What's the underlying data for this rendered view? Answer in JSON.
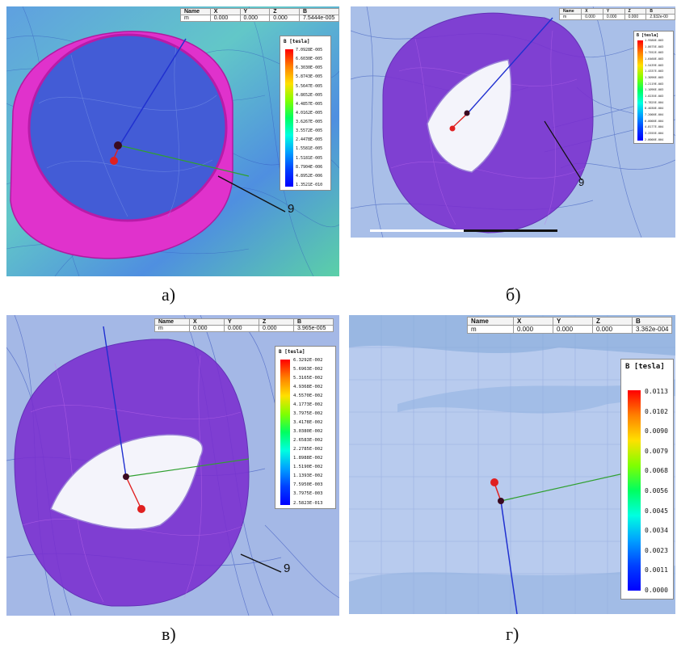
{
  "panels": [
    {
      "caption": "а)",
      "pointer_label": "9",
      "table": {
        "headers": [
          "Name",
          "X",
          "Y",
          "Z",
          "B"
        ],
        "row": [
          "m",
          "0.000",
          "0.000",
          "0.000",
          "7.5444e-005"
        ]
      },
      "legend": {
        "title": "B [tesla]",
        "ticks": [
          "7.0928E-005",
          "6.6030E-005",
          "6.3030E-005",
          "5.8743E-005",
          "5.5647E-005",
          "4.8652E-005",
          "4.4857E-005",
          "4.0162E-005",
          "3.6267E-005",
          "3.5572E-005",
          "2.4478E-005",
          "1.5581E-005",
          "1.5181E-005",
          "8.7904E-006",
          "4.8952E-006",
          "1.3521E-010"
        ]
      }
    },
    {
      "caption": "б)",
      "pointer_label": "9",
      "table": {
        "headers": [
          "Name",
          "X",
          "Y",
          "Z",
          "B"
        ],
        "row": [
          "m",
          "0.000",
          "0.000",
          "0.000",
          "2.932e-00"
        ]
      },
      "legend": {
        "title": "B [tesla]",
        "ticks": [
          "1.9580E-003",
          "1.8675E-003",
          "1.7552E-003",
          "1.6460E-003",
          "1.5439E-003",
          "1.4337E-003",
          "1.3096E-003",
          "1.2119E-003",
          "1.1096E-003",
          "1.0235E-003",
          "9.7825E-004",
          "8.4030E-004",
          "7.2000E-004",
          "6.0000E-004",
          "4.8177E-004",
          "3.2555E-004",
          "2.0000E-004"
        ]
      }
    },
    {
      "caption": "в)",
      "pointer_label": "9",
      "table": {
        "headers": [
          "Name",
          "X",
          "Y",
          "Z",
          "B"
        ],
        "row": [
          "m",
          "0.000",
          "0.000",
          "0.000",
          "3.965e-005"
        ]
      },
      "legend": {
        "title": "B [tesla]",
        "ticks": [
          "6.3292E-002",
          "5.6963E-002",
          "5.3165E-002",
          "4.9368E-002",
          "4.5570E-002",
          "4.1773E-002",
          "3.7975E-002",
          "3.4178E-002",
          "3.0380E-002",
          "2.6583E-002",
          "2.2785E-002",
          "1.8988E-002",
          "1.5190E-002",
          "1.1393E-002",
          "7.5950E-003",
          "3.7975E-003",
          "2.5823E-013"
        ]
      }
    },
    {
      "caption": "г)",
      "table": {
        "headers": [
          "Name",
          "X",
          "Y",
          "Z",
          "B"
        ],
        "row": [
          "m",
          "0.000",
          "0.000",
          "0.000",
          "3.362e-004"
        ]
      },
      "legend": {
        "title": "B [tesla]",
        "ticks": [
          "0.0113",
          "0.0102",
          "0.0090",
          "0.0079",
          "0.0068",
          "0.0056",
          "0.0045",
          "0.0034",
          "0.0023",
          "0.0011",
          "0.0000"
        ]
      }
    }
  ],
  "colors": {
    "ring_magenta": "#e020c8",
    "field_blue": "#3b64d8",
    "mesh_bg": "#9fb8e4",
    "axis_red": "#e02020",
    "axis_green": "#30a030",
    "axis_blue": "#2030d0"
  }
}
